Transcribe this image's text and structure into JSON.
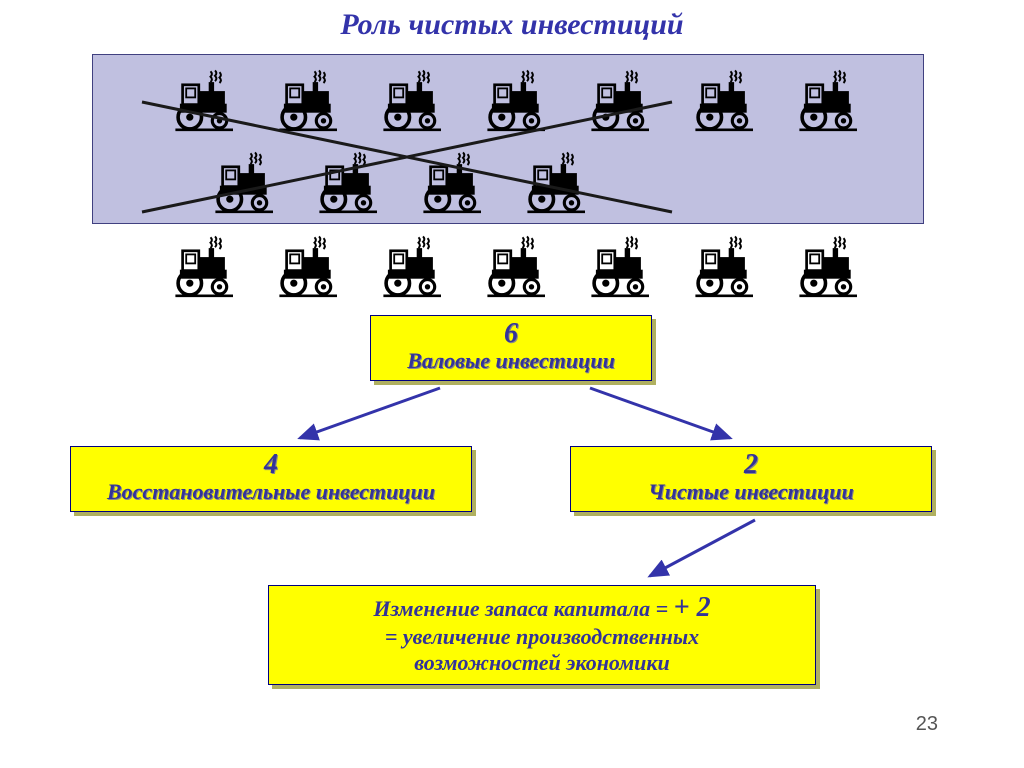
{
  "title": "Роль чистых инвестиций",
  "panel": {
    "bg": "#c0c0e0",
    "border": "#404080",
    "row1_count": 7,
    "row2_count": 4,
    "cross_color": "#1a1a1a"
  },
  "row3_count": 7,
  "box_top": {
    "num": "6",
    "label": "Валовые инвестиции"
  },
  "box_left": {
    "num": "4",
    "label": "Восстановительные инвестиции"
  },
  "box_right": {
    "num": "2",
    "label": "Чистые инвестиции"
  },
  "bottom": {
    "line1_a": "Изменение запаса капитала = ",
    "line1_b": "+ 2",
    "line2": "= увеличение производственных",
    "line3": "возможностей экономики"
  },
  "colors": {
    "title": "#3333aa",
    "box_bg": "#ffff00",
    "box_text": "#333399",
    "box_shadow": "#b0b060",
    "arrow": "#3333aa",
    "tractor": "#000000"
  },
  "page_number": "23"
}
